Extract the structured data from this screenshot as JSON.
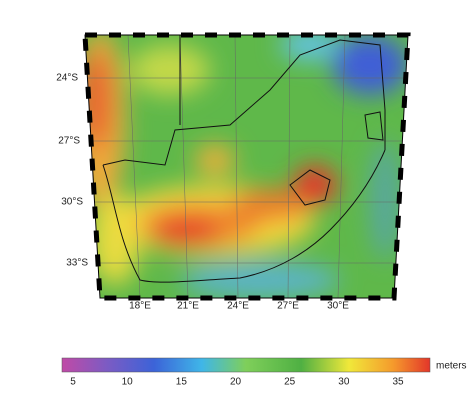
{
  "map": {
    "lat_labels": [
      "24°S",
      "27°S",
      "30°S",
      "33°S"
    ],
    "lon_labels": [
      "18°E",
      "21°E",
      "24°E",
      "27°E",
      "30°E"
    ]
  },
  "colorbar": {
    "ticks": [
      "5",
      "10",
      "15",
      "20",
      "25",
      "30",
      "35"
    ],
    "unit": "meters"
  }
}
